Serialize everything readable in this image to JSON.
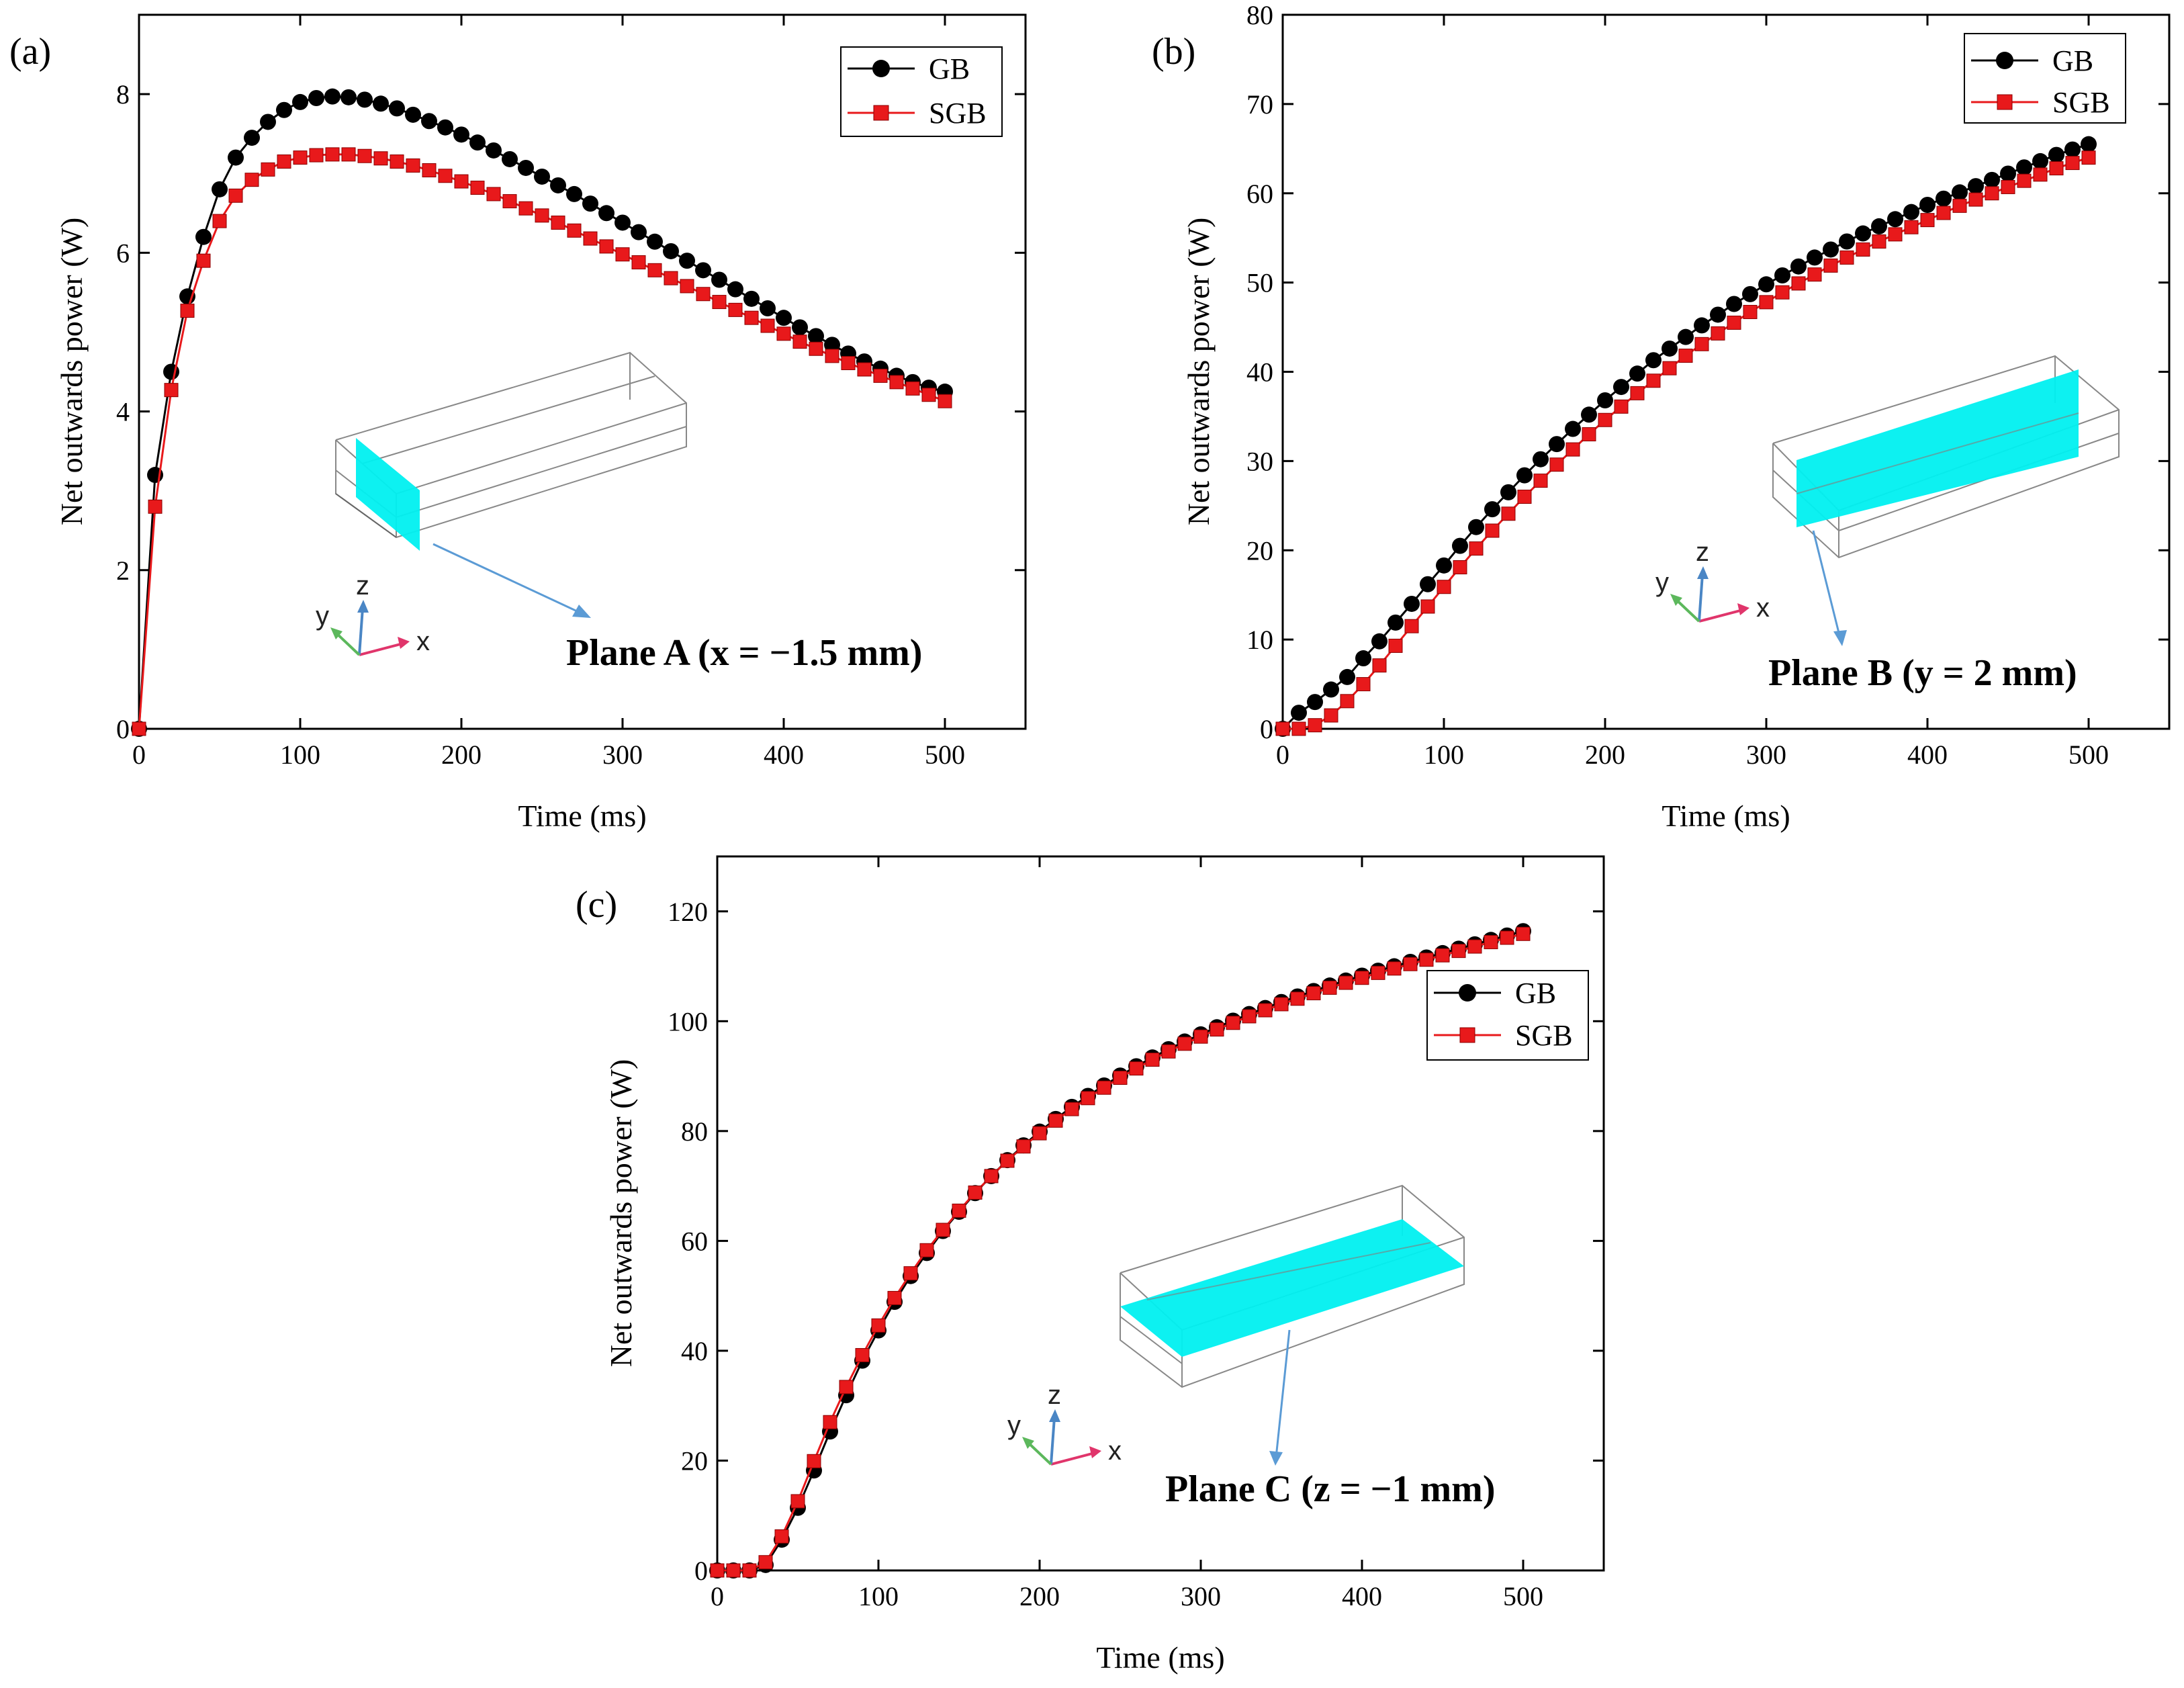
{
  "colors": {
    "gb": "#000000",
    "sgb": "#e8191b",
    "plane": "#00f0f0",
    "pointer": "#5b9bd5",
    "axis_x": "#e0356b",
    "axis_y": "#5cb85c",
    "axis_z": "#4a86c5",
    "wire": "#888888"
  },
  "icons": {
    "gb_marker": "circle-icon",
    "sgb_marker": "square-icon",
    "axes": "xyz-triad-icon"
  },
  "axis_letters": {
    "x": "x",
    "y": "y",
    "z": "z"
  },
  "chart_data": [
    {
      "id": "a",
      "type": "line",
      "panel_label": "(a)",
      "xlabel": "Time (ms)",
      "ylabel": "Net outwards power (W)",
      "xlim": [
        0,
        550
      ],
      "ylim": [
        0,
        9
      ],
      "xticks": [
        0,
        100,
        200,
        300,
        400,
        500
      ],
      "yticks": [
        0,
        2,
        4,
        6,
        8
      ],
      "x": [
        0,
        10,
        20,
        30,
        40,
        50,
        60,
        70,
        80,
        90,
        100,
        110,
        120,
        130,
        140,
        150,
        160,
        170,
        180,
        190,
        200,
        210,
        220,
        230,
        240,
        250,
        260,
        270,
        280,
        290,
        300,
        310,
        320,
        330,
        340,
        350,
        360,
        370,
        380,
        390,
        400,
        410,
        420,
        430,
        440,
        450,
        460,
        470,
        480,
        490,
        500
      ],
      "series": [
        {
          "name": "GB",
          "marker": "circle",
          "values": [
            0,
            3.2,
            4.5,
            5.45,
            6.2,
            6.8,
            7.2,
            7.45,
            7.65,
            7.8,
            7.9,
            7.95,
            7.97,
            7.96,
            7.93,
            7.88,
            7.82,
            7.74,
            7.66,
            7.58,
            7.49,
            7.39,
            7.29,
            7.18,
            7.07,
            6.96,
            6.85,
            6.74,
            6.62,
            6.5,
            6.38,
            6.26,
            6.14,
            6.02,
            5.9,
            5.78,
            5.66,
            5.54,
            5.42,
            5.3,
            5.18,
            5.06,
            4.95,
            4.84,
            4.73,
            4.63,
            4.54,
            4.45,
            4.37,
            4.3,
            4.25
          ]
        },
        {
          "name": "SGB",
          "marker": "square",
          "values": [
            0,
            2.8,
            4.27,
            5.27,
            5.9,
            6.4,
            6.72,
            6.92,
            7.05,
            7.15,
            7.2,
            7.23,
            7.24,
            7.24,
            7.22,
            7.19,
            7.15,
            7.1,
            7.04,
            6.97,
            6.9,
            6.82,
            6.74,
            6.65,
            6.56,
            6.47,
            6.38,
            6.28,
            6.18,
            6.08,
            5.98,
            5.88,
            5.78,
            5.68,
            5.58,
            5.48,
            5.38,
            5.28,
            5.18,
            5.08,
            4.98,
            4.88,
            4.79,
            4.7,
            4.61,
            4.53,
            4.45,
            4.37,
            4.29,
            4.21,
            4.13
          ]
        }
      ],
      "legend": [
        "GB",
        "SGB"
      ],
      "plane_label": "Plane A (x = −1.5 mm)"
    },
    {
      "id": "b",
      "type": "line",
      "panel_label": "(b)",
      "xlabel": "Time (ms)",
      "ylabel": "Net outwards power (W)",
      "xlim": [
        0,
        550
      ],
      "ylim": [
        0,
        80
      ],
      "xticks": [
        0,
        100,
        200,
        300,
        400,
        500
      ],
      "yticks": [
        0,
        10,
        20,
        30,
        40,
        50,
        60,
        70,
        80
      ],
      "x": [
        0,
        10,
        20,
        30,
        40,
        50,
        60,
        70,
        80,
        90,
        100,
        110,
        120,
        130,
        140,
        150,
        160,
        170,
        180,
        190,
        200,
        210,
        220,
        230,
        240,
        250,
        260,
        270,
        280,
        290,
        300,
        310,
        320,
        330,
        340,
        350,
        360,
        370,
        380,
        390,
        400,
        410,
        420,
        430,
        440,
        450,
        460,
        470,
        480,
        490,
        500
      ],
      "series": [
        {
          "name": "GB",
          "marker": "circle",
          "values": [
            0,
            1.8,
            3,
            4.4,
            5.8,
            7.9,
            9.8,
            11.9,
            14,
            16.2,
            18.3,
            20.5,
            22.6,
            24.6,
            26.5,
            28.4,
            30.2,
            31.9,
            33.6,
            35.2,
            36.8,
            38.3,
            39.8,
            41.3,
            42.6,
            43.9,
            45.2,
            46.4,
            47.6,
            48.7,
            49.8,
            50.8,
            51.8,
            52.8,
            53.7,
            54.6,
            55.5,
            56.3,
            57.1,
            57.9,
            58.7,
            59.4,
            60.1,
            60.8,
            61.5,
            62.2,
            62.9,
            63.6,
            64.3,
            64.9,
            65.5
          ]
        },
        {
          "name": "SGB",
          "marker": "square",
          "values": [
            0,
            0,
            0.4,
            1.5,
            3.1,
            5,
            7.1,
            9.3,
            11.5,
            13.7,
            15.9,
            18.1,
            20.2,
            22.2,
            24.1,
            26,
            27.8,
            29.6,
            31.3,
            33,
            34.6,
            36.1,
            37.6,
            39,
            40.4,
            41.8,
            43.1,
            44.3,
            45.5,
            46.7,
            47.8,
            48.9,
            49.9,
            50.9,
            51.9,
            52.8,
            53.7,
            54.6,
            55.4,
            56.2,
            57,
            57.8,
            58.6,
            59.3,
            60,
            60.7,
            61.4,
            62.1,
            62.8,
            63.4,
            64
          ]
        }
      ],
      "legend": [
        "GB",
        "SGB"
      ],
      "plane_label": "Plane B (y = 2 mm)"
    },
    {
      "id": "c",
      "type": "line",
      "panel_label": "(c)",
      "xlabel": "Time (ms)",
      "ylabel": "Net outwards power (W)",
      "xlim": [
        0,
        550
      ],
      "ylim": [
        0,
        130
      ],
      "xticks": [
        0,
        100,
        200,
        300,
        400,
        500
      ],
      "yticks": [
        0,
        20,
        40,
        60,
        80,
        100,
        120
      ],
      "x": [
        0,
        10,
        20,
        30,
        40,
        50,
        60,
        70,
        80,
        90,
        100,
        110,
        120,
        130,
        140,
        150,
        160,
        170,
        180,
        190,
        200,
        210,
        220,
        230,
        240,
        250,
        260,
        270,
        280,
        290,
        300,
        310,
        320,
        330,
        340,
        350,
        360,
        370,
        380,
        390,
        400,
        410,
        420,
        430,
        440,
        450,
        460,
        470,
        480,
        490,
        500
      ],
      "series": [
        {
          "name": "GB",
          "marker": "circle",
          "values": [
            0,
            0,
            0,
            1,
            5.6,
            11.4,
            18.2,
            25.3,
            31.9,
            38.2,
            43.7,
            48.9,
            53.6,
            57.8,
            61.8,
            65.3,
            68.7,
            71.8,
            74.7,
            77.4,
            79.9,
            82.2,
            84.4,
            86.4,
            88.3,
            90.1,
            91.8,
            93.4,
            94.9,
            96.3,
            97.6,
            98.9,
            100.1,
            101.3,
            102.4,
            103.5,
            104.5,
            105.5,
            106.5,
            107.4,
            108.3,
            109.2,
            110,
            110.8,
            111.6,
            112.4,
            113.2,
            114,
            114.8,
            115.6,
            116.4
          ]
        },
        {
          "name": "SGB",
          "marker": "square",
          "values": [
            0,
            0,
            0,
            1.5,
            6.2,
            12.6,
            19.9,
            27,
            33.4,
            39.2,
            44.6,
            49.6,
            54.1,
            58.3,
            62,
            65.5,
            68.8,
            71.8,
            74.6,
            77.2,
            79.6,
            81.9,
            84,
            86,
            87.9,
            89.7,
            91.4,
            93,
            94.5,
            95.9,
            97.2,
            98.5,
            99.7,
            100.9,
            102,
            103.1,
            104.1,
            105.1,
            106.1,
            107,
            107.9,
            108.8,
            109.6,
            110.4,
            111.2,
            112,
            112.8,
            113.6,
            114.4,
            115.2,
            115.9
          ]
        }
      ],
      "legend": [
        "GB",
        "SGB"
      ],
      "plane_label": "Plane C (z = −1 mm)"
    }
  ]
}
